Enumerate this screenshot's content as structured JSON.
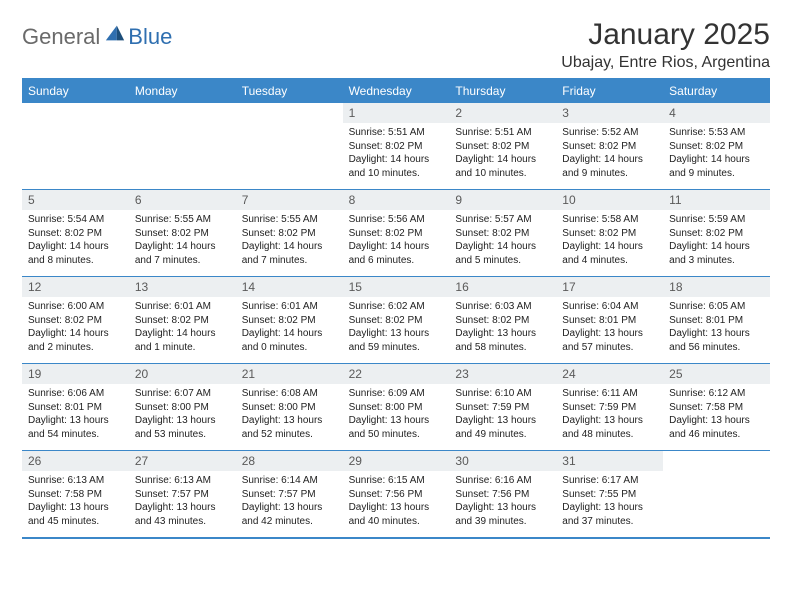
{
  "brand": {
    "part1": "General",
    "part2": "Blue"
  },
  "title": "January 2025",
  "location": "Ubajay, Entre Rios, Argentina",
  "colors": {
    "accent": "#3b87c8",
    "daynum_bg": "#eceff1",
    "text": "#222222",
    "logo_gray": "#6a6a6a",
    "logo_blue": "#2f6fb0",
    "background": "#ffffff"
  },
  "days_of_week": [
    "Sunday",
    "Monday",
    "Tuesday",
    "Wednesday",
    "Thursday",
    "Friday",
    "Saturday"
  ],
  "weeks": [
    [
      {
        "n": "",
        "sr": "",
        "ss": "",
        "dl": ""
      },
      {
        "n": "",
        "sr": "",
        "ss": "",
        "dl": ""
      },
      {
        "n": "",
        "sr": "",
        "ss": "",
        "dl": ""
      },
      {
        "n": "1",
        "sr": "5:51 AM",
        "ss": "8:02 PM",
        "dl": "14 hours and 10 minutes."
      },
      {
        "n": "2",
        "sr": "5:51 AM",
        "ss": "8:02 PM",
        "dl": "14 hours and 10 minutes."
      },
      {
        "n": "3",
        "sr": "5:52 AM",
        "ss": "8:02 PM",
        "dl": "14 hours and 9 minutes."
      },
      {
        "n": "4",
        "sr": "5:53 AM",
        "ss": "8:02 PM",
        "dl": "14 hours and 9 minutes."
      }
    ],
    [
      {
        "n": "5",
        "sr": "5:54 AM",
        "ss": "8:02 PM",
        "dl": "14 hours and 8 minutes."
      },
      {
        "n": "6",
        "sr": "5:55 AM",
        "ss": "8:02 PM",
        "dl": "14 hours and 7 minutes."
      },
      {
        "n": "7",
        "sr": "5:55 AM",
        "ss": "8:02 PM",
        "dl": "14 hours and 7 minutes."
      },
      {
        "n": "8",
        "sr": "5:56 AM",
        "ss": "8:02 PM",
        "dl": "14 hours and 6 minutes."
      },
      {
        "n": "9",
        "sr": "5:57 AM",
        "ss": "8:02 PM",
        "dl": "14 hours and 5 minutes."
      },
      {
        "n": "10",
        "sr": "5:58 AM",
        "ss": "8:02 PM",
        "dl": "14 hours and 4 minutes."
      },
      {
        "n": "11",
        "sr": "5:59 AM",
        "ss": "8:02 PM",
        "dl": "14 hours and 3 minutes."
      }
    ],
    [
      {
        "n": "12",
        "sr": "6:00 AM",
        "ss": "8:02 PM",
        "dl": "14 hours and 2 minutes."
      },
      {
        "n": "13",
        "sr": "6:01 AM",
        "ss": "8:02 PM",
        "dl": "14 hours and 1 minute."
      },
      {
        "n": "14",
        "sr": "6:01 AM",
        "ss": "8:02 PM",
        "dl": "14 hours and 0 minutes."
      },
      {
        "n": "15",
        "sr": "6:02 AM",
        "ss": "8:02 PM",
        "dl": "13 hours and 59 minutes."
      },
      {
        "n": "16",
        "sr": "6:03 AM",
        "ss": "8:02 PM",
        "dl": "13 hours and 58 minutes."
      },
      {
        "n": "17",
        "sr": "6:04 AM",
        "ss": "8:01 PM",
        "dl": "13 hours and 57 minutes."
      },
      {
        "n": "18",
        "sr": "6:05 AM",
        "ss": "8:01 PM",
        "dl": "13 hours and 56 minutes."
      }
    ],
    [
      {
        "n": "19",
        "sr": "6:06 AM",
        "ss": "8:01 PM",
        "dl": "13 hours and 54 minutes."
      },
      {
        "n": "20",
        "sr": "6:07 AM",
        "ss": "8:00 PM",
        "dl": "13 hours and 53 minutes."
      },
      {
        "n": "21",
        "sr": "6:08 AM",
        "ss": "8:00 PM",
        "dl": "13 hours and 52 minutes."
      },
      {
        "n": "22",
        "sr": "6:09 AM",
        "ss": "8:00 PM",
        "dl": "13 hours and 50 minutes."
      },
      {
        "n": "23",
        "sr": "6:10 AM",
        "ss": "7:59 PM",
        "dl": "13 hours and 49 minutes."
      },
      {
        "n": "24",
        "sr": "6:11 AM",
        "ss": "7:59 PM",
        "dl": "13 hours and 48 minutes."
      },
      {
        "n": "25",
        "sr": "6:12 AM",
        "ss": "7:58 PM",
        "dl": "13 hours and 46 minutes."
      }
    ],
    [
      {
        "n": "26",
        "sr": "6:13 AM",
        "ss": "7:58 PM",
        "dl": "13 hours and 45 minutes."
      },
      {
        "n": "27",
        "sr": "6:13 AM",
        "ss": "7:57 PM",
        "dl": "13 hours and 43 minutes."
      },
      {
        "n": "28",
        "sr": "6:14 AM",
        "ss": "7:57 PM",
        "dl": "13 hours and 42 minutes."
      },
      {
        "n": "29",
        "sr": "6:15 AM",
        "ss": "7:56 PM",
        "dl": "13 hours and 40 minutes."
      },
      {
        "n": "30",
        "sr": "6:16 AM",
        "ss": "7:56 PM",
        "dl": "13 hours and 39 minutes."
      },
      {
        "n": "31",
        "sr": "6:17 AM",
        "ss": "7:55 PM",
        "dl": "13 hours and 37 minutes."
      },
      {
        "n": "",
        "sr": "",
        "ss": "",
        "dl": ""
      }
    ]
  ],
  "labels": {
    "sunrise": "Sunrise:",
    "sunset": "Sunset:",
    "daylight": "Daylight:"
  }
}
